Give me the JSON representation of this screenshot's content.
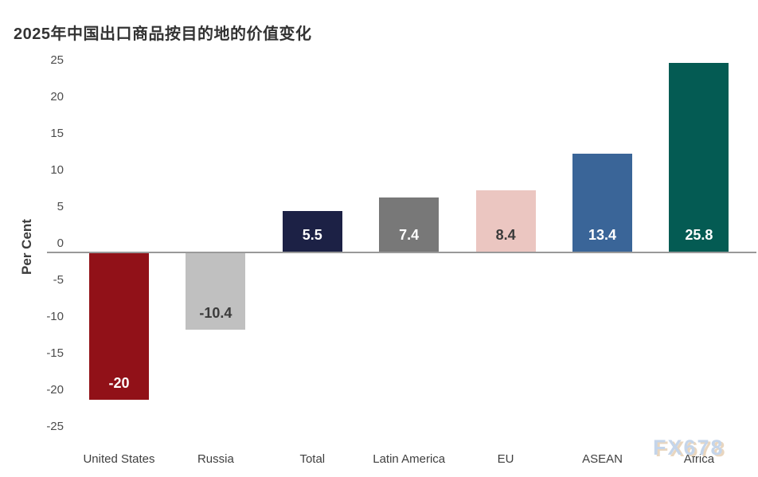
{
  "title": "2025年中国出口商品按目的地的价值变化",
  "watermark": "FX678",
  "y_axis": {
    "label": "Per Cent",
    "ticks": [
      {
        "value": 25,
        "label": "25"
      },
      {
        "value": 20,
        "label": "20"
      },
      {
        "value": 15,
        "label": "15"
      },
      {
        "value": 10,
        "label": "10"
      },
      {
        "value": 5,
        "label": "5"
      },
      {
        "value": 0,
        "label": "0"
      },
      {
        "value": -5,
        "label": "-5"
      },
      {
        "value": -10,
        "label": "-10"
      },
      {
        "value": -15,
        "label": "-15"
      },
      {
        "value": -20,
        "label": "-20"
      },
      {
        "value": -25,
        "label": "-25"
      }
    ]
  },
  "chart_data": {
    "type": "bar",
    "title": "2025年中国出口商品按目的地的价值变化",
    "xlabel": "",
    "ylabel": "Per Cent",
    "ylim": [
      -25,
      25
    ],
    "grid": false,
    "legend": false,
    "categories": [
      "United States",
      "Russia",
      "Total",
      "Latin America",
      "EU",
      "ASEAN",
      "Africa"
    ],
    "values": [
      -20,
      -10.4,
      5.5,
      7.4,
      8.4,
      13.4,
      25.8
    ],
    "bar_labels": [
      "-20",
      "-10.4",
      "5.5",
      "7.4",
      "8.4",
      "13.4",
      "25.8"
    ],
    "bar_colors": [
      "#911118",
      "#c0c0c0",
      "#1c2145",
      "#787878",
      "#ebc6c1",
      "#3a6598",
      "#045b53"
    ],
    "bar_label_colors": [
      "#ffffff",
      "#3b3b3b",
      "#ffffff",
      "#ffffff",
      "#3b3b3b",
      "#ffffff",
      "#ffffff"
    ],
    "axis_line_color": "#999999"
  }
}
